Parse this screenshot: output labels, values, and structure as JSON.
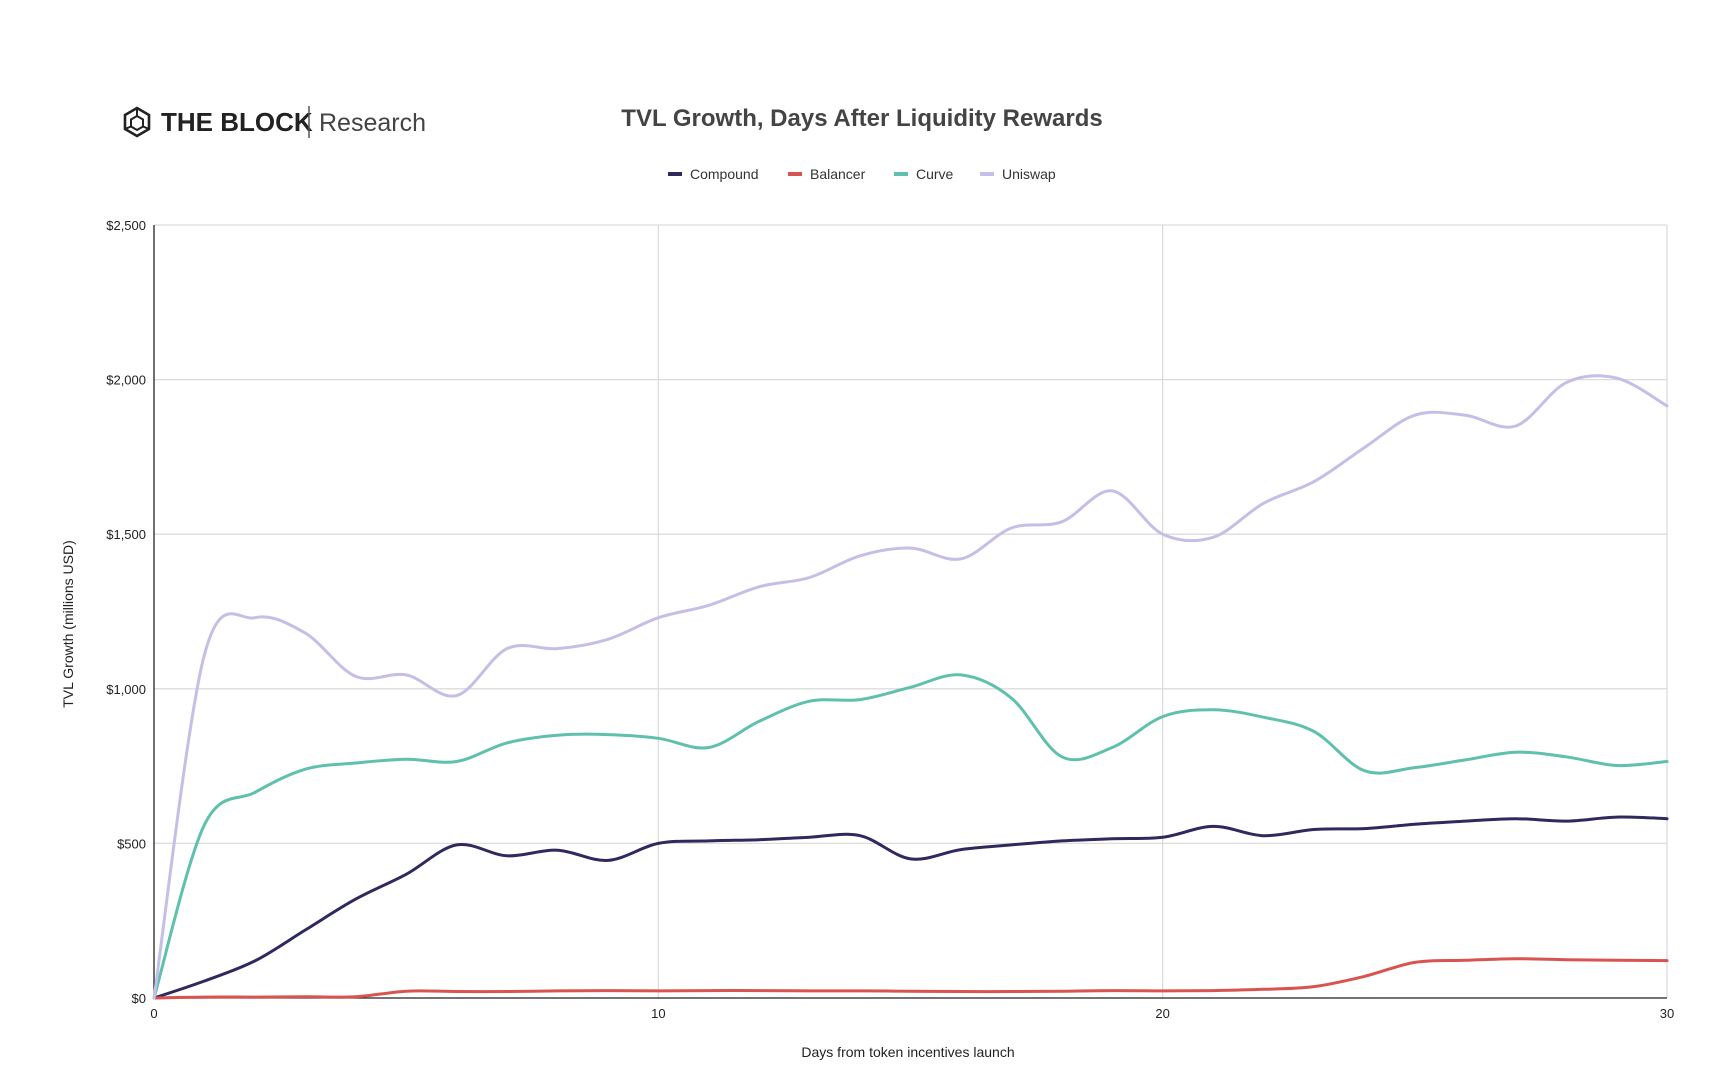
{
  "brand": {
    "name": "THE BLOCK",
    "sub": "Research",
    "icon": "hexagon-cube-logo-icon"
  },
  "chart_data": {
    "type": "line",
    "title": "TVL Growth, Days After Liquidity Rewards",
    "xlabel": "Days from token incentives launch",
    "ylabel": "TVL Growth (millions USD)",
    "xlim": [
      0,
      30
    ],
    "ylim": [
      0,
      2500
    ],
    "x_ticks": [
      0,
      10,
      20,
      30
    ],
    "x_tick_labels": [
      "0",
      "10",
      "20",
      "30"
    ],
    "y_ticks": [
      0,
      500,
      1000,
      1500,
      2000,
      2500
    ],
    "y_tick_labels": [
      "$0",
      "$500",
      "$1,000",
      "$1,500",
      "$2,000",
      "$2,500"
    ],
    "grid": true,
    "legend_position": "top-center",
    "x": [
      0,
      1,
      2,
      3,
      4,
      5,
      6,
      7,
      8,
      9,
      10,
      11,
      12,
      13,
      14,
      15,
      16,
      17,
      18,
      19,
      20,
      21,
      22,
      23,
      24,
      25,
      26,
      27,
      28,
      29,
      30
    ],
    "series": [
      {
        "name": "Compound",
        "color": "#2e2a5e",
        "values": [
          0,
          55,
          120,
          220,
          320,
          400,
          495,
          460,
          478,
          445,
          500,
          508,
          512,
          520,
          525,
          450,
          480,
          495,
          508,
          515,
          520,
          555,
          525,
          545,
          548,
          562,
          572,
          580,
          572,
          585,
          580
        ]
      },
      {
        "name": "Balancer",
        "color": "#d9534f",
        "values": [
          0,
          3,
          3,
          4,
          4,
          22,
          21,
          21,
          23,
          24,
          23,
          24,
          24,
          23,
          23,
          22,
          21,
          21,
          22,
          24,
          23,
          24,
          28,
          37,
          70,
          115,
          122,
          127,
          124,
          122,
          121
        ]
      },
      {
        "name": "Curve",
        "color": "#5fc0ad",
        "values": [
          0,
          560,
          665,
          740,
          760,
          772,
          765,
          825,
          850,
          852,
          840,
          810,
          895,
          960,
          965,
          1005,
          1045,
          970,
          780,
          810,
          910,
          932,
          908,
          862,
          735,
          745,
          770,
          795,
          780,
          752,
          765
        ]
      },
      {
        "name": "Uniswap",
        "color": "#c4bfe6",
        "values": [
          0,
          1110,
          1230,
          1180,
          1040,
          1045,
          978,
          1130,
          1130,
          1160,
          1230,
          1270,
          1330,
          1360,
          1430,
          1455,
          1420,
          1520,
          1540,
          1640,
          1500,
          1490,
          1600,
          1670,
          1780,
          1885,
          1885,
          1850,
          1990,
          2005,
          1915
        ]
      }
    ]
  }
}
